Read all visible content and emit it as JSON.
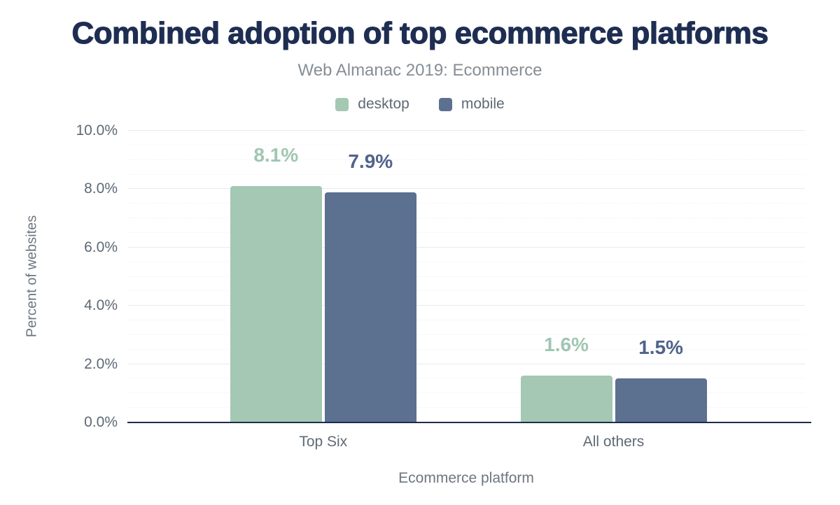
{
  "page": {
    "background": "#ffffff"
  },
  "header": {
    "title": "Combined adoption of top ecommerce platforms",
    "subtitle": "Web Almanac 2019: Ecommerce"
  },
  "colors": {
    "title": "#1e2e52",
    "subtitle_text": "#868e95",
    "axis_text": "#5e6974",
    "axis_title_text": "#6d7681",
    "desktop": "#a4c8b3",
    "mobile": "#5c7090",
    "desktop_label": "#a0c6b1",
    "mobile_label": "#50638a",
    "baseline": "#1c2c4d",
    "grid_major": "#e7e9eb",
    "grid_minor": "#f1f2f4"
  },
  "legend": {
    "items": [
      {
        "label": "desktop",
        "series": "desktop"
      },
      {
        "label": "mobile",
        "series": "mobile"
      }
    ]
  },
  "chart_data": {
    "type": "bar",
    "title": "Combined adoption of top ecommerce platforms",
    "subtitle": "Web Almanac 2019: Ecommerce",
    "categories": [
      "Top Six",
      "All others"
    ],
    "series": [
      {
        "name": "desktop",
        "values": [
          8.1,
          1.6
        ],
        "data_labels": [
          "8.1%",
          "1.6%"
        ],
        "color_key": "desktop"
      },
      {
        "name": "mobile",
        "values": [
          7.9,
          1.5
        ],
        "data_labels": [
          "7.9%",
          "1.5%"
        ],
        "color_key": "mobile"
      }
    ],
    "xlabel": "Ecommerce platform",
    "ylabel": "Percent of websites",
    "ylim": [
      0,
      10
    ],
    "yticks": [
      0,
      2,
      4,
      6,
      8,
      10
    ],
    "ytick_labels": [
      "0.0%",
      "2.0%",
      "4.0%",
      "6.0%",
      "8.0%",
      "10.0%"
    ],
    "minor_tick_step": 0.5,
    "grid": "on",
    "legend_position": "top"
  }
}
